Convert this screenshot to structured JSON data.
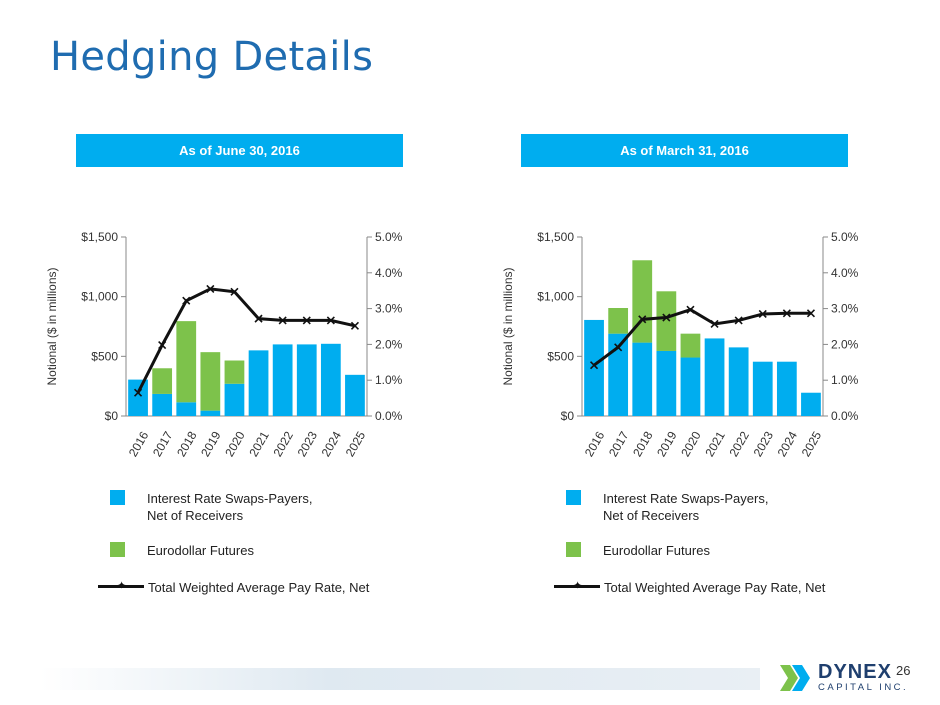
{
  "page": {
    "title": "Hedging Details",
    "page_number": "26"
  },
  "logo": {
    "name": "DYNEX",
    "subtitle": "CAPITAL INC."
  },
  "colors": {
    "swaps": "#00adef",
    "futures": "#7dc24b",
    "line": "#111111",
    "title": "#1f6cb0",
    "banner": "#00adef"
  },
  "panels": [
    {
      "banner": "As of June 30, 2016"
    },
    {
      "banner": "As of March 31, 2016"
    }
  ],
  "legend": {
    "swaps": "Interest Rate Swaps-Payers,\n Net of Receivers",
    "futures": "Eurodollar Futures",
    "line": "Total Weighted Average Pay Rate, Net"
  },
  "chart_data": [
    {
      "type": "bar",
      "stacked": true,
      "title": "As of June 30, 2016",
      "ylabel": "Notional ($ in millions)",
      "y2label": "",
      "categories": [
        "2016",
        "2017",
        "2018",
        "2019",
        "2020",
        "2021",
        "2022",
        "2023",
        "2024",
        "2025"
      ],
      "ylim": [
        0,
        1500
      ],
      "y_ticks": [
        "$0",
        "$500",
        "$1,000",
        "$1,500"
      ],
      "y2lim": [
        0,
        5
      ],
      "y2_ticks": [
        "0.0%",
        "1.0%",
        "2.0%",
        "3.0%",
        "4.0%",
        "5.0%"
      ],
      "series": [
        {
          "name": "Interest Rate Swaps-Payers, Net of Receivers",
          "axis": "left",
          "values": [
            305,
            185,
            115,
            45,
            270,
            550,
            600,
            600,
            605,
            345
          ]
        },
        {
          "name": "Eurodollar Futures",
          "axis": "left",
          "values": [
            0,
            215,
            680,
            490,
            195,
            0,
            0,
            0,
            0,
            0
          ]
        },
        {
          "name": "Total Weighted Average Pay Rate, Net",
          "axis": "right",
          "kind": "line",
          "values": [
            0.65,
            1.98,
            3.22,
            3.55,
            3.47,
            2.72,
            2.67,
            2.67,
            2.67,
            2.52
          ]
        }
      ]
    },
    {
      "type": "bar",
      "stacked": true,
      "title": "As of March 31, 2016",
      "ylabel": "Notional ($ in millions)",
      "y2label": "",
      "categories": [
        "2016",
        "2017",
        "2018",
        "2019",
        "2020",
        "2021",
        "2022",
        "2023",
        "2024",
        "2025"
      ],
      "ylim": [
        0,
        1500
      ],
      "y_ticks": [
        "$0",
        "$500",
        "$1,000",
        "$1,500"
      ],
      "y2lim": [
        0,
        5
      ],
      "y2_ticks": [
        "0.0%",
        "1.0%",
        "2.0%",
        "3.0%",
        "4.0%",
        "5.0%"
      ],
      "series": [
        {
          "name": "Interest Rate Swaps-Payers, Net of Receivers",
          "axis": "left",
          "values": [
            805,
            690,
            615,
            545,
            490,
            650,
            575,
            455,
            455,
            195
          ]
        },
        {
          "name": "Eurodollar Futures",
          "axis": "left",
          "values": [
            0,
            215,
            690,
            500,
            200,
            0,
            0,
            0,
            0,
            0
          ]
        },
        {
          "name": "Total Weighted Average Pay Rate, Net",
          "axis": "right",
          "kind": "line",
          "values": [
            1.42,
            1.92,
            2.7,
            2.75,
            2.97,
            2.57,
            2.67,
            2.85,
            2.87,
            2.87
          ]
        }
      ]
    }
  ]
}
